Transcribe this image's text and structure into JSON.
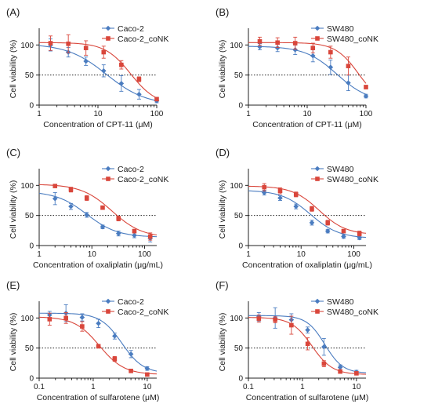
{
  "colors": {
    "blue": "#4a7cc0",
    "red": "#d9463b",
    "ref": "#222222"
  },
  "chart_data": [
    {
      "panel": "(A)",
      "type": "scatter",
      "xscale": "log",
      "xlabel": "Concentration of CPT-11 (μM)",
      "ylabel": "Cell viability (%)",
      "xlim": [
        1,
        100
      ],
      "ylim": [
        0,
        120
      ],
      "yticks": [
        0,
        50,
        100
      ],
      "xticks": [
        1,
        10,
        100
      ],
      "xtick_labels": [
        "1",
        "10",
        "100"
      ],
      "reference_y": 50,
      "legend_position": "top-right",
      "series": [
        {
          "name": "Caco-2",
          "color": "#4a7cc0",
          "x": [
            1.56,
            3.13,
            6.25,
            12.5,
            25,
            50,
            100
          ],
          "y": [
            100,
            88,
            73,
            57,
            36,
            18,
            7
          ],
          "err": [
            10,
            8,
            7,
            10,
            13,
            8,
            3
          ],
          "fit": {
            "top": 102,
            "bottom": 0,
            "ic50": 14,
            "hill": 1.3
          }
        },
        {
          "name": "Caco-2_coNK",
          "color": "#d9463b",
          "x": [
            1.56,
            3.13,
            6.25,
            12.5,
            25,
            50,
            100
          ],
          "y": [
            103,
            102,
            95,
            88,
            67,
            43,
            10
          ],
          "err": [
            12,
            15,
            12,
            10,
            7,
            4,
            3
          ],
          "fit": {
            "top": 104,
            "bottom": 0,
            "ic50": 36,
            "hill": 2
          }
        }
      ]
    },
    {
      "panel": "(B)",
      "type": "scatter",
      "xscale": "log",
      "xlabel": "Concentration of CPT-11 (μM)",
      "ylabel": "Cell viability (%)",
      "xlim": [
        1,
        100
      ],
      "ylim": [
        0,
        120
      ],
      "yticks": [
        0,
        50,
        100
      ],
      "xticks": [
        1,
        10,
        100
      ],
      "xtick_labels": [
        "1",
        "10",
        "100"
      ],
      "reference_y": 50,
      "legend_position": "top-right",
      "series": [
        {
          "name": "SW480",
          "color": "#4a7cc0",
          "x": [
            1.56,
            3.13,
            6.25,
            12.5,
            25,
            50,
            100
          ],
          "y": [
            97,
            95,
            92,
            82,
            63,
            37,
            15
          ],
          "err": [
            5,
            6,
            8,
            10,
            12,
            13,
            3
          ],
          "fit": {
            "top": 98,
            "bottom": 5,
            "ic50": 32,
            "hill": 1.6
          }
        },
        {
          "name": "SW480_coNK",
          "color": "#d9463b",
          "x": [
            1.56,
            3.13,
            6.25,
            12.5,
            25,
            50,
            100
          ],
          "y": [
            106,
            104,
            103,
            95,
            88,
            65,
            30
          ],
          "err": [
            7,
            8,
            10,
            8,
            10,
            15,
            3
          ],
          "fit": {
            "top": 104,
            "bottom": 0,
            "ic50": 75,
            "hill": 2.2
          }
        }
      ]
    },
    {
      "panel": "(C)",
      "type": "scatter",
      "xscale": "log",
      "xlabel": "Concentration of oxaliplatin (μg/mL)",
      "ylabel": "Cell viability (%)",
      "xlim": [
        1,
        170
      ],
      "ylim": [
        0,
        120
      ],
      "yticks": [
        0,
        50,
        100
      ],
      "xticks": [
        1,
        10,
        100
      ],
      "xtick_labels": [
        "1",
        "10",
        "100"
      ],
      "reference_y": 50,
      "legend_position": "top-right",
      "series": [
        {
          "name": "Caco-2",
          "color": "#4a7cc0",
          "x": [
            2,
            4,
            8,
            16,
            32,
            64,
            128
          ],
          "y": [
            78,
            65,
            51,
            31,
            20,
            17,
            12
          ],
          "err": [
            10,
            5,
            4,
            3,
            4,
            4,
            6
          ],
          "fit": {
            "top": 90,
            "bottom": 14,
            "ic50": 8,
            "hill": 1.5
          }
        },
        {
          "name": "Caco-2_coNK",
          "color": "#d9463b",
          "x": [
            2,
            4,
            8,
            16,
            32,
            64,
            128
          ],
          "y": [
            99,
            93,
            79,
            63,
            45,
            24,
            15
          ],
          "err": [
            2,
            4,
            4,
            3,
            4,
            3,
            6
          ],
          "fit": {
            "top": 102,
            "bottom": 13,
            "ic50": 24,
            "hill": 1.5
          }
        }
      ]
    },
    {
      "panel": "(D)",
      "type": "scatter",
      "xscale": "log",
      "xlabel": "Concentration of oxaliplatin (μg/mL)",
      "ylabel": "Cell viability (%)",
      "xlim": [
        1,
        170
      ],
      "ylim": [
        0,
        120
      ],
      "yticks": [
        0,
        50,
        100
      ],
      "xticks": [
        1,
        10,
        100
      ],
      "xtick_labels": [
        "1",
        "10",
        "100"
      ],
      "reference_y": 50,
      "legend_position": "top-right",
      "series": [
        {
          "name": "SW480",
          "color": "#4a7cc0",
          "x": [
            2,
            4,
            8,
            16,
            32,
            64,
            128
          ],
          "y": [
            88,
            79,
            65,
            38,
            24,
            15,
            13
          ],
          "err": [
            4,
            4,
            4,
            4,
            3,
            3,
            3
          ],
          "fit": {
            "top": 92,
            "bottom": 12,
            "ic50": 15,
            "hill": 1.6
          }
        },
        {
          "name": "SW480_coNK",
          "color": "#d9463b",
          "x": [
            2,
            4,
            8,
            16,
            32,
            64,
            128
          ],
          "y": [
            97,
            91,
            85,
            61,
            38,
            24,
            20
          ],
          "err": [
            6,
            5,
            4,
            4,
            4,
            3,
            4
          ],
          "fit": {
            "top": 99,
            "bottom": 18,
            "ic50": 22,
            "hill": 1.7
          }
        }
      ]
    },
    {
      "panel": "(E)",
      "type": "scatter",
      "xscale": "log",
      "xlabel": "Concentration of sulfarotene (μM)",
      "ylabel": "Cell viability (%)",
      "xlim": [
        0.1,
        15
      ],
      "ylim": [
        0,
        120
      ],
      "yticks": [
        0,
        50,
        100
      ],
      "xticks": [
        0.1,
        1,
        10
      ],
      "xtick_labels": [
        "0.1",
        "1",
        "10"
      ],
      "reference_y": 50,
      "legend_position": "top-right",
      "series": [
        {
          "name": "Caco-2",
          "color": "#4a7cc0",
          "x": [
            0.156,
            0.313,
            0.625,
            1.25,
            2.5,
            5,
            10
          ],
          "y": [
            105,
            108,
            101,
            91,
            70,
            40,
            16
          ],
          "err": [
            6,
            14,
            6,
            7,
            5,
            6,
            3
          ],
          "fit": {
            "top": 108,
            "bottom": 8,
            "ic50": 3.4,
            "hill": 2.2
          }
        },
        {
          "name": "Caco-2_coNK",
          "color": "#d9463b",
          "x": [
            0.156,
            0.313,
            0.625,
            1.25,
            2.5,
            5,
            10
          ],
          "y": [
            98,
            100,
            86,
            53,
            32,
            12,
            6
          ],
          "err": [
            10,
            9,
            8,
            3,
            4,
            3,
            2
          ],
          "fit": {
            "top": 102,
            "bottom": 6,
            "ic50": 1.3,
            "hill": 1.9
          }
        }
      ]
    },
    {
      "panel": "(F)",
      "type": "scatter",
      "xscale": "log",
      "xlabel": "Concentration of sulfarotene (μM)",
      "ylabel": "Cell viability (%)",
      "xlim": [
        0.1,
        15
      ],
      "ylim": [
        0,
        120
      ],
      "yticks": [
        0,
        50,
        100
      ],
      "xticks": [
        0.1,
        1,
        10
      ],
      "xtick_labels": [
        "0.1",
        "1",
        "10"
      ],
      "reference_y": 50,
      "legend_position": "top-right",
      "series": [
        {
          "name": "SW480",
          "color": "#4a7cc0",
          "x": [
            0.156,
            0.313,
            0.625,
            1.25,
            2.5,
            5,
            10
          ],
          "y": [
            102,
            100,
            97,
            80,
            52,
            18,
            10
          ],
          "err": [
            7,
            17,
            10,
            5,
            14,
            4,
            3
          ],
          "fit": {
            "top": 104,
            "bottom": 8,
            "ic50": 2.6,
            "hill": 2.6
          }
        },
        {
          "name": "SW480_coNK",
          "color": "#d9463b",
          "x": [
            0.156,
            0.313,
            0.625,
            1.25,
            2.5,
            5,
            10
          ],
          "y": [
            99,
            97,
            88,
            57,
            24,
            11,
            8
          ],
          "err": [
            6,
            5,
            15,
            10,
            5,
            3,
            2
          ],
          "fit": {
            "top": 101,
            "bottom": 6,
            "ic50": 1.5,
            "hill": 2.3
          }
        }
      ]
    }
  ]
}
